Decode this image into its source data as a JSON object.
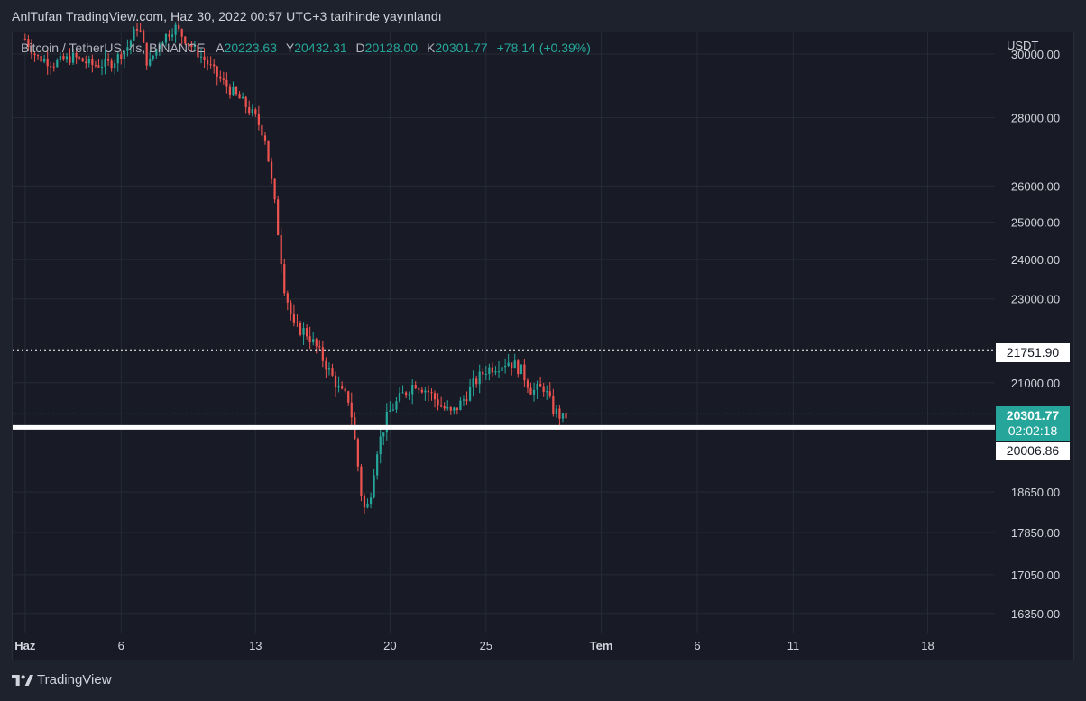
{
  "header": {
    "publisher": "AnlTufan TradingView.com, Haz 30, 2022 00:57 UTC+3 tarihinde yayınlandı"
  },
  "legend": {
    "symbol": "Bitcoin / TetherUS, 4s, BINANCE",
    "open_label": "A",
    "open": "20223.63",
    "high_label": "Y",
    "high": "20432.31",
    "low_label": "D",
    "low": "20128.00",
    "close_label": "K",
    "close": "20301.77",
    "change": "+78.14 (+0.39%)"
  },
  "axis": {
    "currency": "USDT"
  },
  "footer": {
    "brand": "TradingView"
  },
  "colors": {
    "up": "#26a69a",
    "down": "#ef5350",
    "background": "#181b25",
    "grid": "#262a35",
    "text": "#d1d4dc"
  },
  "chart_data": {
    "type": "candlestick",
    "y_scale": "log",
    "ylim": [
      16000,
      30000
    ],
    "y_ticks": [
      30000,
      28000,
      26000,
      25000,
      24000,
      23000,
      21000,
      18650,
      17850,
      17050,
      16350
    ],
    "y_tick_labels": [
      "30000.00",
      "28000.00",
      "26000.00",
      "25000.00",
      "24000.00",
      "23000.00",
      "21000.00",
      "18650.00",
      "17850.00",
      "17050.00",
      "16350.00"
    ],
    "x_ticks": [
      {
        "day": 1,
        "label": "Haz"
      },
      {
        "day": 6,
        "label": "6"
      },
      {
        "day": 13,
        "label": "13"
      },
      {
        "day": 20,
        "label": "20"
      },
      {
        "day": 25,
        "label": "25"
      },
      {
        "day": 31,
        "label": "Tem"
      },
      {
        "day": 36,
        "label": "6"
      },
      {
        "day": 41,
        "label": "11"
      },
      {
        "day": 48,
        "label": "18"
      }
    ],
    "x_range_days": [
      0.35,
      51.5
    ],
    "price_path": [
      [
        1.0,
        30500
      ],
      [
        1.6,
        29900
      ],
      [
        2.5,
        29700
      ],
      [
        3.5,
        29900
      ],
      [
        4.5,
        29650
      ],
      [
        5.5,
        29700
      ],
      [
        6.3,
        30200
      ],
      [
        6.9,
        31000
      ],
      [
        7.4,
        29600
      ],
      [
        8.0,
        30400
      ],
      [
        8.8,
        30900
      ],
      [
        9.6,
        30300
      ],
      [
        10.5,
        29700
      ],
      [
        11.0,
        29300
      ],
      [
        11.6,
        28900
      ],
      [
        12.3,
        28500
      ],
      [
        13.0,
        28000
      ],
      [
        13.5,
        27400
      ],
      [
        14.0,
        25500
      ],
      [
        14.5,
        23300
      ],
      [
        15.0,
        22300
      ],
      [
        15.6,
        22200
      ],
      [
        16.2,
        21800
      ],
      [
        16.8,
        21300
      ],
      [
        17.4,
        20800
      ],
      [
        17.9,
        20600
      ],
      [
        18.3,
        19300
      ],
      [
        18.6,
        18300
      ],
      [
        18.9,
        18400
      ],
      [
        19.3,
        19500
      ],
      [
        19.9,
        20300
      ],
      [
        20.6,
        20700
      ],
      [
        21.3,
        21000
      ],
      [
        22.0,
        20800
      ],
      [
        22.6,
        20500
      ],
      [
        23.2,
        20300
      ],
      [
        23.8,
        20600
      ],
      [
        24.4,
        21000
      ],
      [
        25.0,
        21300
      ],
      [
        25.6,
        21400
      ],
      [
        26.2,
        21500
      ],
      [
        26.8,
        21300
      ],
      [
        27.4,
        20800
      ],
      [
        28.0,
        20900
      ],
      [
        28.5,
        20400
      ],
      [
        29.0,
        20200
      ],
      [
        29.3,
        20300
      ]
    ],
    "horizontal_lines": [
      {
        "price": 21751.9,
        "label": "21751.90",
        "style": "dotted",
        "color": "#ffffff"
      },
      {
        "price": 20006.86,
        "label": "20006.86",
        "style": "solid",
        "color": "#ffffff"
      },
      {
        "price": 20301.77,
        "label": "20301.77",
        "style": "dotted",
        "color": "#26a69a"
      }
    ],
    "last_price": {
      "price": "20301.77",
      "countdown": "02:02:18"
    }
  }
}
